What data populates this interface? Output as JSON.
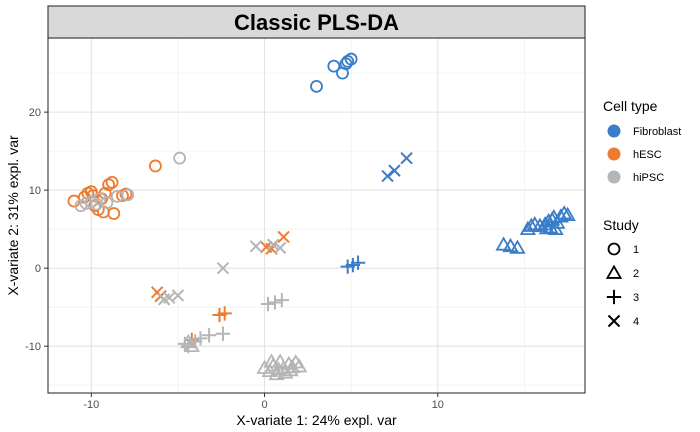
{
  "chart_data": {
    "type": "scatter",
    "title": "Classic PLS-DA",
    "xlabel": "X-variate 1: 24% expl. var",
    "ylabel": "X-variate 2: 31% expl. var",
    "xlim": [
      -12.5,
      18.5
    ],
    "ylim": [
      -16,
      29.5
    ],
    "x_ticks": [
      -10,
      0,
      10
    ],
    "y_ticks": [
      -10,
      0,
      10,
      20
    ],
    "grid": true,
    "legend_position": "right",
    "legend": {
      "color_title": "Cell type",
      "color_entries": [
        {
          "name": "Fibroblast",
          "color": "#3a7dc9"
        },
        {
          "name": "hESC",
          "color": "#ee7b2f"
        },
        {
          "name": "hiPSC",
          "color": "#b5b5b5"
        }
      ],
      "shape_title": "Study",
      "shape_entries": [
        {
          "name": "1",
          "shape": "circle"
        },
        {
          "name": "2",
          "shape": "triangle"
        },
        {
          "name": "3",
          "shape": "plus"
        },
        {
          "name": "4",
          "shape": "cross"
        }
      ]
    },
    "series": [
      {
        "group": "Fibroblast",
        "shape": "circle",
        "points": [
          [
            3.0,
            23.3
          ],
          [
            4.0,
            25.9
          ],
          [
            4.5,
            25.0
          ],
          [
            4.7,
            26.2
          ],
          [
            4.8,
            26.5
          ],
          [
            5.0,
            26.8
          ]
        ]
      },
      {
        "group": "Fibroblast",
        "shape": "cross",
        "points": [
          [
            7.1,
            11.8
          ],
          [
            7.5,
            12.5
          ],
          [
            8.2,
            14.1
          ]
        ]
      },
      {
        "group": "Fibroblast",
        "shape": "plus",
        "points": [
          [
            4.8,
            0.2
          ],
          [
            5.1,
            0.4
          ],
          [
            5.4,
            0.7
          ]
        ]
      },
      {
        "group": "Fibroblast",
        "shape": "triangle",
        "points": [
          [
            13.8,
            3.0
          ],
          [
            14.2,
            2.8
          ],
          [
            14.6,
            2.6
          ],
          [
            15.2,
            5.0
          ],
          [
            15.4,
            5.4
          ],
          [
            15.6,
            5.6
          ],
          [
            15.9,
            5.4
          ],
          [
            16.2,
            5.6
          ],
          [
            16.4,
            6.0
          ],
          [
            16.5,
            5.2
          ],
          [
            16.6,
            6.2
          ],
          [
            16.8,
            5.0
          ],
          [
            16.9,
            5.8
          ],
          [
            17.1,
            6.6
          ],
          [
            17.3,
            7.0
          ],
          [
            17.5,
            6.8
          ],
          [
            16.7,
            6.5
          ],
          [
            16.3,
            5.1
          ]
        ]
      },
      {
        "group": "hESC",
        "shape": "circle",
        "points": [
          [
            -11.0,
            8.6
          ],
          [
            -10.4,
            9.1
          ],
          [
            -10.2,
            9.6
          ],
          [
            -10.0,
            9.8
          ],
          [
            -9.8,
            8.0
          ],
          [
            -9.6,
            7.5
          ],
          [
            -9.4,
            8.9
          ],
          [
            -9.2,
            9.6
          ],
          [
            -9.0,
            10.7
          ],
          [
            -8.8,
            11.0
          ],
          [
            -8.7,
            7.0
          ],
          [
            -8.2,
            9.3
          ],
          [
            -8.0,
            9.5
          ],
          [
            -9.3,
            7.2
          ],
          [
            -9.9,
            9.3
          ],
          [
            -6.3,
            13.1
          ]
        ]
      },
      {
        "group": "hESC",
        "shape": "cross",
        "points": [
          [
            -6.2,
            -3.1
          ],
          [
            -6.0,
            -3.6
          ],
          [
            0.1,
            2.7
          ],
          [
            0.4,
            2.5
          ],
          [
            1.1,
            4.0
          ]
        ]
      },
      {
        "group": "hESC",
        "shape": "plus",
        "points": [
          [
            -4.2,
            -9.2
          ],
          [
            -2.6,
            -6.0
          ],
          [
            -2.3,
            -5.8
          ]
        ]
      },
      {
        "group": "hiPSC",
        "shape": "circle",
        "points": [
          [
            -10.6,
            8.0
          ],
          [
            -10.3,
            8.3
          ],
          [
            -10.0,
            8.5
          ],
          [
            -9.7,
            8.2
          ],
          [
            -9.5,
            8.9
          ],
          [
            -9.1,
            8.4
          ],
          [
            -8.5,
            9.2
          ],
          [
            -7.9,
            9.4
          ],
          [
            -4.9,
            14.1
          ]
        ]
      },
      {
        "group": "hiPSC",
        "shape": "cross",
        "points": [
          [
            -5.8,
            -4.0
          ],
          [
            -5.5,
            -3.8
          ],
          [
            -5.0,
            -3.5
          ],
          [
            -2.4,
            0.0
          ],
          [
            -0.5,
            2.8
          ],
          [
            0.5,
            3.0
          ],
          [
            0.9,
            2.6
          ]
        ]
      },
      {
        "group": "hiPSC",
        "shape": "plus",
        "points": [
          [
            -4.6,
            -9.7
          ],
          [
            -4.4,
            -10.0
          ],
          [
            -4.0,
            -9.4
          ],
          [
            -3.7,
            -9.0
          ],
          [
            -3.2,
            -8.6
          ],
          [
            -2.4,
            -8.4
          ],
          [
            0.2,
            -4.6
          ],
          [
            0.6,
            -4.4
          ],
          [
            1.0,
            -4.1
          ]
        ]
      },
      {
        "group": "hiPSC",
        "shape": "triangle",
        "points": [
          [
            -4.4,
            -9.5
          ],
          [
            -4.2,
            -10.0
          ],
          [
            0.0,
            -12.8
          ],
          [
            0.3,
            -13.2
          ],
          [
            0.5,
            -12.5
          ],
          [
            0.7,
            -13.6
          ],
          [
            0.9,
            -12.0
          ],
          [
            1.1,
            -12.8
          ],
          [
            1.2,
            -13.4
          ],
          [
            1.4,
            -12.3
          ],
          [
            1.6,
            -12.7
          ],
          [
            1.8,
            -12.1
          ],
          [
            2.0,
            -12.6
          ],
          [
            0.4,
            -12.0
          ],
          [
            0.8,
            -13.0
          ],
          [
            1.5,
            -13.1
          ]
        ]
      }
    ]
  }
}
